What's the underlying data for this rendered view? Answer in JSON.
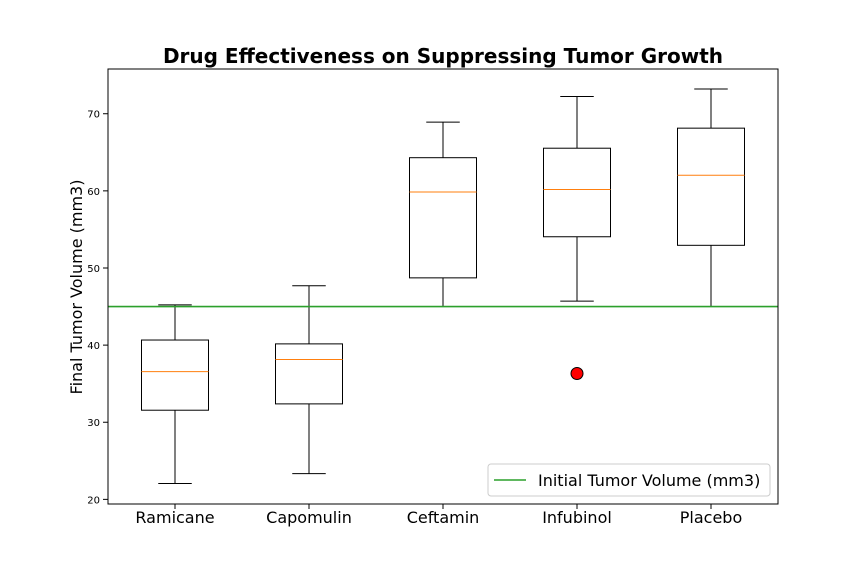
{
  "chart_data": {
    "type": "box",
    "title": "Drug Effectiveness on Suppressing Tumor Growth",
    "xlabel": "",
    "ylabel": "Final Tumor Volume (mm3)",
    "ylim": [
      19.4,
      75.8
    ],
    "yticks": [
      20,
      30,
      40,
      50,
      60,
      70
    ],
    "grid": false,
    "legend": {
      "position": "bottom-right",
      "entries": [
        {
          "label": "Initial Tumor Volume (mm3)",
          "color": "#2ca02c"
        }
      ]
    },
    "reference_line": {
      "y": 45,
      "label": "Initial Tumor Volume (mm3)",
      "color": "#2ca02c"
    },
    "categories": [
      "Ramicane",
      "Capomulin",
      "Ceftamin",
      "Infubinol",
      "Placebo"
    ],
    "boxes": [
      {
        "category": "Ramicane",
        "whisker_low": 22.05,
        "q1": 31.56,
        "median": 36.56,
        "q3": 40.66,
        "whisker_high": 45.22,
        "outliers": []
      },
      {
        "category": "Capomulin",
        "whisker_low": 23.34,
        "q1": 32.38,
        "median": 38.13,
        "q3": 40.16,
        "whisker_high": 47.69,
        "outliers": []
      },
      {
        "category": "Ceftamin",
        "whisker_low": 45.0,
        "q1": 48.72,
        "median": 59.85,
        "q3": 64.3,
        "whisker_high": 68.92,
        "outliers": []
      },
      {
        "category": "Infubinol",
        "whisker_low": 45.7,
        "q1": 54.05,
        "median": 60.17,
        "q3": 65.53,
        "whisker_high": 72.23,
        "outliers": [
          36.32
        ]
      },
      {
        "category": "Placebo",
        "whisker_low": 45.0,
        "q1": 52.94,
        "median": 62.03,
        "q3": 68.13,
        "whisker_high": 73.21,
        "outliers": []
      }
    ],
    "colors": {
      "box": "#000000",
      "median": "#ff7f0e",
      "outlier_fill": "#ff0000",
      "reference_line": "#2ca02c"
    }
  }
}
